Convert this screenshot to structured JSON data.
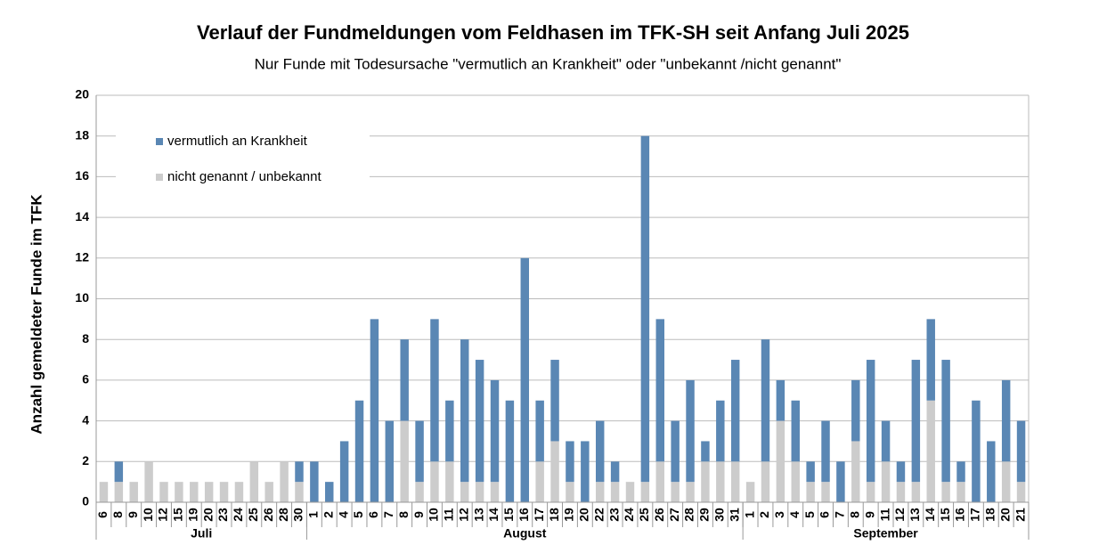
{
  "chart_data": {
    "type": "stacked_bar",
    "title": "Verlauf der Fundmeldungen vom Feldhasen im TFK-SH seit Anfang Juli 2025",
    "subtitle": "Nur Funde mit Todesursache \"vermutlich an Krankheit\" oder \"unbekannt /nicht genannt\"",
    "y_label": "Anzahl gemeldeter Funde im TFK",
    "categories": [
      "6",
      "8",
      "9",
      "10",
      "12",
      "15",
      "19",
      "20",
      "23",
      "24",
      "25",
      "26",
      "28",
      "30",
      "1",
      "2",
      "4",
      "5",
      "6",
      "7",
      "8",
      "9",
      "10",
      "11",
      "12",
      "13",
      "14",
      "15",
      "16",
      "17",
      "18",
      "19",
      "20",
      "22",
      "23",
      "24",
      "25",
      "26",
      "27",
      "28",
      "29",
      "30",
      "31",
      "1",
      "2",
      "3",
      "4",
      "5",
      "6",
      "7",
      "8",
      "9",
      "11",
      "12",
      "13",
      "14",
      "15",
      "16",
      "17",
      "18",
      "20",
      "21"
    ],
    "groups": [
      {
        "name": "Juli",
        "size": 14
      },
      {
        "name": "August",
        "size": 29
      },
      {
        "name": "September",
        "size": 19
      }
    ],
    "series": [
      {
        "name": "vermutlich an Krankheit",
        "color": "#5a87b4",
        "values": [
          0,
          1,
          0,
          0,
          0,
          0,
          0,
          0,
          0,
          0,
          0,
          0,
          0,
          1,
          2,
          1,
          3,
          5,
          9,
          4,
          4,
          3,
          7,
          3,
          7,
          6,
          5,
          5,
          12,
          3,
          4,
          2,
          3,
          3,
          1,
          0,
          17,
          7,
          3,
          5,
          1,
          3,
          5,
          0,
          6,
          2,
          3,
          1,
          3,
          2,
          3,
          6,
          2,
          1,
          6,
          4,
          6,
          1,
          5,
          3,
          4,
          3
        ]
      },
      {
        "name": "nicht genannt / unbekannt",
        "color": "#cccccc",
        "values": [
          1,
          1,
          1,
          2,
          1,
          1,
          1,
          1,
          1,
          1,
          2,
          1,
          2,
          1,
          0,
          0,
          0,
          0,
          0,
          0,
          4,
          1,
          2,
          2,
          1,
          1,
          1,
          0,
          0,
          2,
          3,
          1,
          0,
          1,
          1,
          1,
          1,
          2,
          1,
          1,
          2,
          2,
          2,
          1,
          2,
          4,
          2,
          1,
          1,
          0,
          3,
          1,
          2,
          1,
          1,
          5,
          1,
          1,
          0,
          0,
          2,
          1
        ]
      }
    ],
    "ylim": [
      0,
      20
    ],
    "yticks": [
      0,
      2,
      4,
      6,
      8,
      10,
      12,
      14,
      16,
      18,
      20
    ],
    "grid": true,
    "legend": "top-left"
  }
}
